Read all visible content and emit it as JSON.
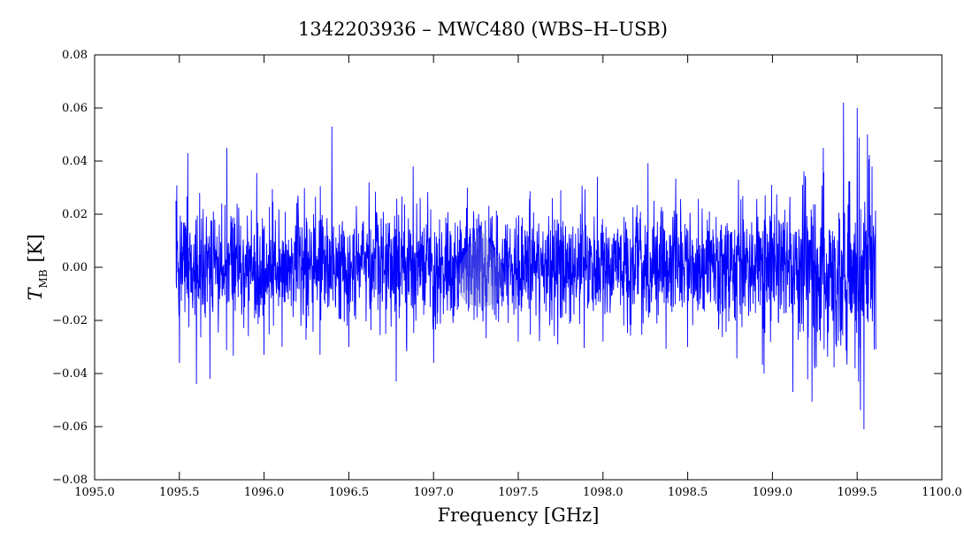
{
  "chart_data": {
    "type": "line",
    "title": "1342203936 – MWC480 (WBS–H–USB)",
    "xlabel": "Frequency [GHz]",
    "ylabel": {
      "symbol": "T",
      "subscript": "MB",
      "unit": "[K]"
    },
    "xlim": [
      1095.0,
      1100.0
    ],
    "ylim": [
      -0.08,
      0.08
    ],
    "x_ticks": [
      1095.0,
      1095.5,
      1096.0,
      1096.5,
      1097.0,
      1097.5,
      1098.0,
      1098.5,
      1099.0,
      1099.5,
      1100.0
    ],
    "x_tick_labels": [
      "1095.0",
      "1095.5",
      "1096.0",
      "1096.5",
      "1097.0",
      "1097.5",
      "1098.0",
      "1098.5",
      "1099.0",
      "1099.5",
      "1100.0"
    ],
    "y_ticks": [
      -0.08,
      -0.06,
      -0.04,
      -0.02,
      0.0,
      0.02,
      0.04,
      0.06,
      0.08
    ],
    "y_tick_labels": [
      "−0.08",
      "−0.06",
      "−0.04",
      "−0.02",
      "0.00",
      "0.02",
      "0.04",
      "0.06",
      "0.08"
    ],
    "grid": false,
    "series": [
      {
        "color": "#0000ff",
        "x_range": [
          1095.48,
          1099.61
        ],
        "baseline": 0.0,
        "noise_rms": 0.011,
        "x": [
          1095.48,
          1095.5,
          1095.55,
          1095.6,
          1095.62,
          1095.68,
          1095.75,
          1095.78,
          1096.0,
          1096.2,
          1096.33,
          1096.4,
          1096.5,
          1096.62,
          1096.78,
          1096.88,
          1097.0,
          1097.2,
          1097.5,
          1097.75,
          1098.0,
          1098.3,
          1098.5,
          1098.8,
          1098.95,
          1099.12,
          1099.3,
          1099.42,
          1099.5,
          1099.54,
          1099.56,
          1099.6
        ],
        "y": [
          0.025,
          -0.036,
          0.043,
          -0.044,
          0.028,
          -0.042,
          0.024,
          0.045,
          -0.033,
          0.027,
          -0.033,
          0.053,
          -0.03,
          0.032,
          -0.043,
          0.038,
          -0.036,
          0.03,
          -0.028,
          0.029,
          -0.028,
          0.025,
          -0.03,
          0.033,
          -0.04,
          -0.047,
          0.045,
          0.062,
          0.06,
          -0.061,
          0.05,
          -0.031
        ]
      }
    ],
    "highlight_color": "#6f73c8"
  }
}
